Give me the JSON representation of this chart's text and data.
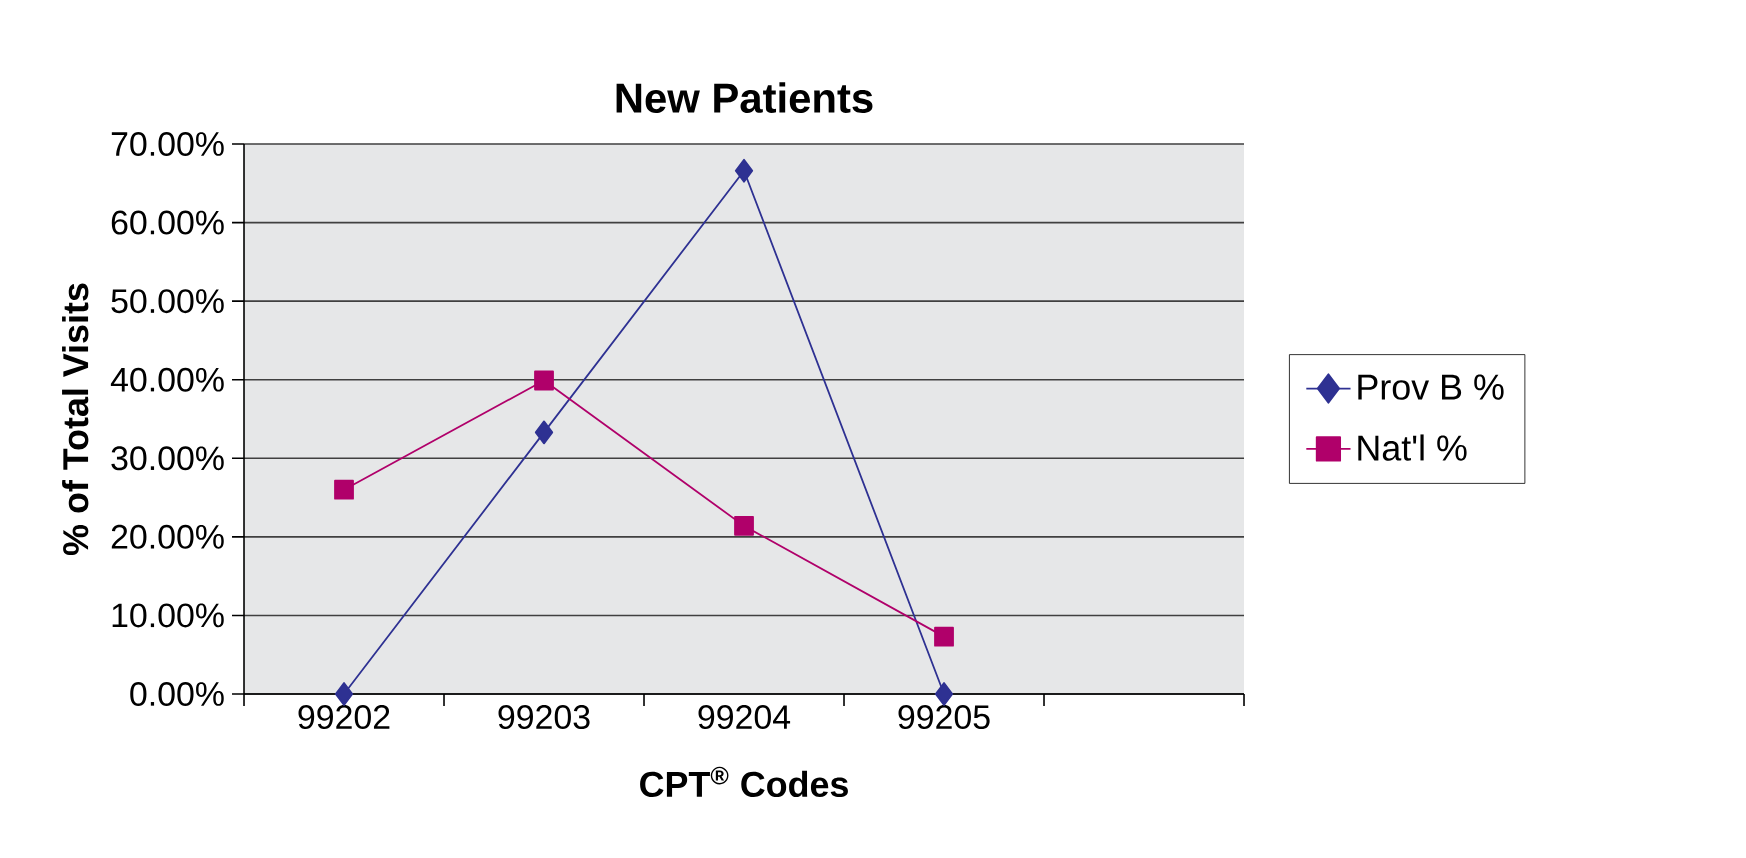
{
  "chart_data": {
    "type": "line",
    "title": "New Patients",
    "xlabel": "CPT$^{®}$ Codes",
    "ylabel": "% of Total Visits",
    "categories": [
      "99202",
      "99203",
      "99204",
      "99205",
      null
    ],
    "series": [
      {
        "name": "Prov B %",
        "color": "#2e3192",
        "marker": "diamond",
        "values": [
          0,
          33.3,
          66.6,
          0,
          null
        ]
      },
      {
        "name": "Nat'l %",
        "color": "#b0006a",
        "marker": "square",
        "values": [
          26.0,
          39.9,
          21.4,
          7.3,
          null
        ]
      }
    ],
    "ylim": [
      0,
      70
    ],
    "yticks": [
      {
        "value": 0,
        "label": "0.00%"
      },
      {
        "value": 10,
        "label": "10.00%"
      },
      {
        "value": 20,
        "label": "20.00%"
      },
      {
        "value": 30,
        "label": "30.00%"
      },
      {
        "value": 40,
        "label": "40.00%"
      },
      {
        "value": 50,
        "label": "50.00%"
      },
      {
        "value": 60,
        "label": "60.00%"
      },
      {
        "value": 70,
        "label": "70.00%"
      }
    ],
    "grid": "y",
    "legend": "right",
    "line_style": "solid"
  }
}
